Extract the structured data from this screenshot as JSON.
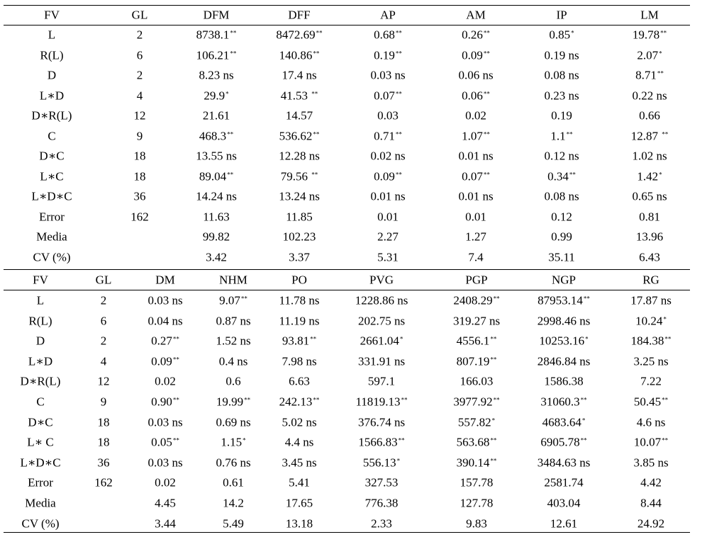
{
  "tables": [
    {
      "headers": [
        "FV",
        "GL",
        "DFM",
        "DFF",
        "AP",
        "AM",
        "IP",
        "LM"
      ],
      "rows": [
        [
          "L",
          "2",
          "8738.1**",
          "8472.69**",
          "0.68**",
          "0.26**",
          "0.85*",
          "19.78**"
        ],
        [
          "R(L)",
          "6",
          "106.21**",
          "140.86**",
          "0.19**",
          "0.09**",
          "0.19 ns",
          "2.07*"
        ],
        [
          "D",
          "2",
          "8.23 ns",
          "17.4 ns",
          "0.03 ns",
          "0.06 ns",
          "0.08 ns",
          "8.71**"
        ],
        [
          "L∗D",
          "4",
          "29.9*",
          "41.53 **",
          "0.07**",
          "0.06**",
          "0.23 ns",
          "0.22 ns"
        ],
        [
          "D∗R(L)",
          "12",
          "21.61",
          "14.57",
          "0.03",
          "0.02",
          "0.19",
          "0.66"
        ],
        [
          "C",
          "9",
          "468.3**",
          "536.62**",
          "0.71**",
          "1.07**",
          "1.1**",
          "12.87 **"
        ],
        [
          "D∗C",
          "18",
          "13.55 ns",
          "12.28 ns",
          "0.02 ns",
          "0.01 ns",
          "0.12 ns",
          "1.02 ns"
        ],
        [
          "L∗C",
          "18",
          "89.04**",
          "79.56 **",
          "0.09**",
          "0.07**",
          "0.34**",
          "1.42*"
        ],
        [
          "L∗D∗C",
          "36",
          "14.24 ns",
          "13.24 ns",
          "0.01 ns",
          "0.01 ns",
          "0.08 ns",
          "0.65 ns"
        ],
        [
          "Error",
          "162",
          "11.63",
          "11.85",
          "0.01",
          "0.01",
          "0.12",
          "0.81"
        ],
        [
          "Media",
          "",
          "99.82",
          "102.23",
          "2.27",
          "1.27",
          "0.99",
          "13.96"
        ],
        [
          "CV (%)",
          "",
          "3.42",
          "3.37",
          "5.31",
          "7.4",
          "35.11",
          "6.43"
        ]
      ]
    },
    {
      "headers": [
        "FV",
        "GL",
        "DM",
        "NHM",
        "PO",
        "PVG",
        "PGP",
        "NGP",
        "RG"
      ],
      "rows": [
        [
          "L",
          "2",
          "0.03 ns",
          "9.07**",
          "11.78 ns",
          "1228.86 ns",
          "2408.29**",
          "87953.14**",
          "17.87 ns"
        ],
        [
          "R(L)",
          "6",
          "0.04 ns",
          "0.87 ns",
          "11.19 ns",
          "202.75 ns",
          "319.27 ns",
          "2998.46 ns",
          "10.24*"
        ],
        [
          "D",
          "2",
          "0.27**",
          "1.52 ns",
          "93.81**",
          "2661.04*",
          "4556.1**",
          "10253.16*",
          "184.38**"
        ],
        [
          "L∗D",
          "4",
          "0.09**",
          "0.4 ns",
          "7.98 ns",
          "331.91 ns",
          "807.19**",
          "2846.84 ns",
          "3.25 ns"
        ],
        [
          "D∗R(L)",
          "12",
          "0.02",
          "0.6",
          "6.63",
          "597.1",
          "166.03",
          "1586.38",
          "7.22"
        ],
        [
          "C",
          "9",
          "0.90**",
          "19.99**",
          "242.13**",
          "11819.13**",
          "3977.92**",
          "31060.3**",
          "50.45**"
        ],
        [
          "D∗C",
          "18",
          "0.03 ns",
          "0.69 ns",
          "5.02 ns",
          "376.74 ns",
          "557.82*",
          "4683.64*",
          "4.6 ns"
        ],
        [
          "L∗ C",
          "18",
          "0.05**",
          "1.15*",
          "4.4 ns",
          "1566.83**",
          "563.68**",
          "6905.78**",
          "10.07**"
        ],
        [
          "L∗D∗C",
          "36",
          "0.03 ns",
          "0.76 ns",
          "3.45 ns",
          "556.13*",
          "390.14**",
          "3484.63 ns",
          "3.85 ns"
        ],
        [
          "Error",
          "162",
          "0.02",
          "0.61",
          "5.41",
          "327.53",
          "157.78",
          "2581.74",
          "4.42"
        ],
        [
          "Media",
          "",
          "4.45",
          "14.2",
          "17.65",
          "776.38",
          "127.78",
          "403.04",
          "8.44"
        ],
        [
          "CV (%)",
          "",
          "3.44",
          "5.49",
          "13.18",
          "2.33",
          "9.83",
          "12.61",
          "24.92"
        ]
      ]
    }
  ]
}
